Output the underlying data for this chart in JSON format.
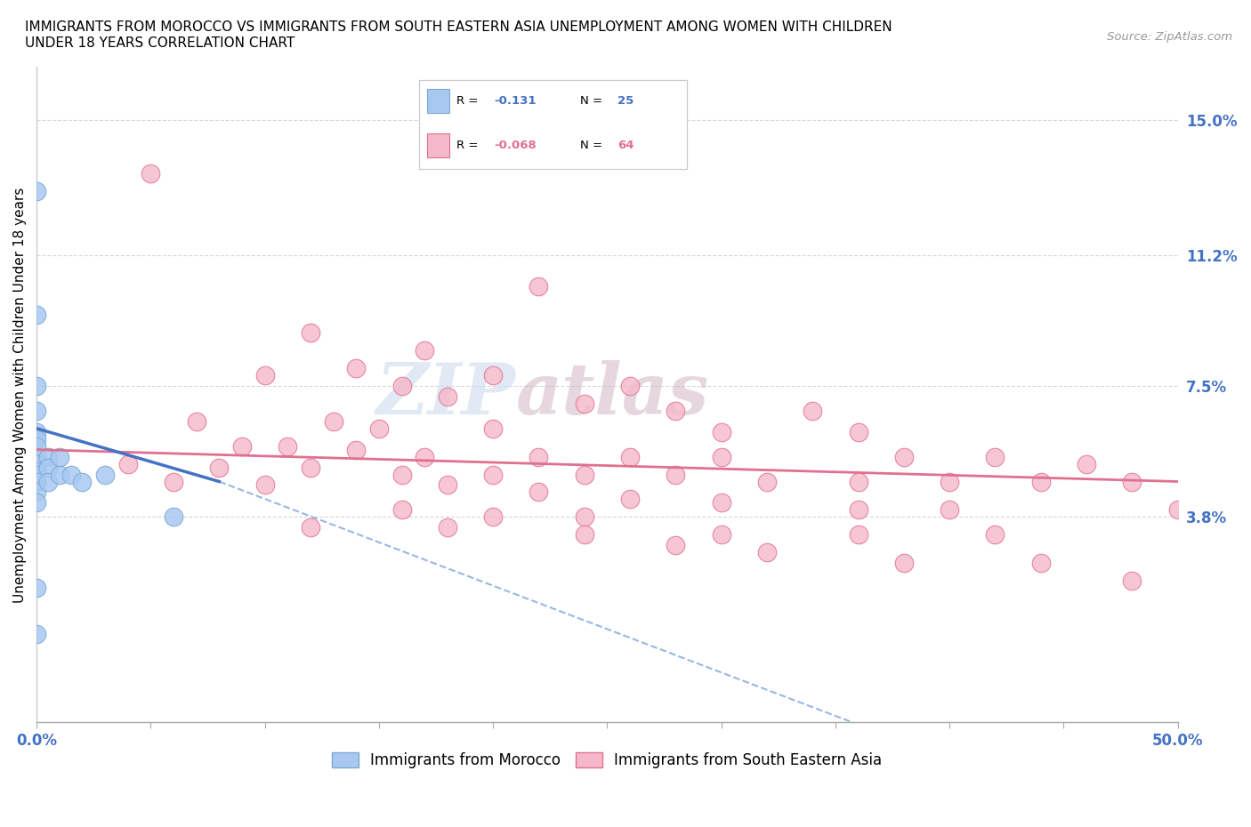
{
  "title": "IMMIGRANTS FROM MOROCCO VS IMMIGRANTS FROM SOUTH EASTERN ASIA UNEMPLOYMENT AMONG WOMEN WITH CHILDREN\nUNDER 18 YEARS CORRELATION CHART",
  "source": "Source: ZipAtlas.com",
  "ylabel": "Unemployment Among Women with Children Under 18 years",
  "xlim": [
    0.0,
    0.5
  ],
  "ylim": [
    -0.02,
    0.165
  ],
  "xticks": [
    0.0,
    0.05,
    0.1,
    0.15,
    0.2,
    0.25,
    0.3,
    0.35,
    0.4,
    0.45,
    0.5
  ],
  "ytick_positions": [
    0.0,
    0.038,
    0.075,
    0.112,
    0.15
  ],
  "ytick_labels": [
    "",
    "3.8%",
    "7.5%",
    "11.2%",
    "15.0%"
  ],
  "morocco_color": "#a8c8f0",
  "morocco_edge": "#7aaad4",
  "sea_color": "#f5b8c8",
  "sea_edge": "#e07090",
  "R_morocco": -0.131,
  "N_morocco": 25,
  "R_sea": -0.068,
  "N_sea": 64,
  "morocco_scatter": [
    [
      0.0,
      0.13
    ],
    [
      0.0,
      0.095
    ],
    [
      0.0,
      0.075
    ],
    [
      0.0,
      0.068
    ],
    [
      0.0,
      0.062
    ],
    [
      0.0,
      0.06
    ],
    [
      0.0,
      0.058
    ],
    [
      0.0,
      0.055
    ],
    [
      0.0,
      0.053
    ],
    [
      0.0,
      0.051
    ],
    [
      0.0,
      0.05
    ],
    [
      0.0,
      0.048
    ],
    [
      0.0,
      0.045
    ],
    [
      0.0,
      0.042
    ],
    [
      0.005,
      0.055
    ],
    [
      0.005,
      0.052
    ],
    [
      0.005,
      0.048
    ],
    [
      0.01,
      0.055
    ],
    [
      0.01,
      0.05
    ],
    [
      0.015,
      0.05
    ],
    [
      0.02,
      0.048
    ],
    [
      0.03,
      0.05
    ],
    [
      0.06,
      0.038
    ],
    [
      0.0,
      0.018
    ],
    [
      0.0,
      0.005
    ]
  ],
  "sea_scatter": [
    [
      0.05,
      0.135
    ],
    [
      0.22,
      0.103
    ],
    [
      0.12,
      0.09
    ],
    [
      0.17,
      0.085
    ],
    [
      0.14,
      0.08
    ],
    [
      0.2,
      0.078
    ],
    [
      0.1,
      0.078
    ],
    [
      0.16,
      0.075
    ],
    [
      0.26,
      0.075
    ],
    [
      0.18,
      0.072
    ],
    [
      0.24,
      0.07
    ],
    [
      0.28,
      0.068
    ],
    [
      0.34,
      0.068
    ],
    [
      0.07,
      0.065
    ],
    [
      0.13,
      0.065
    ],
    [
      0.15,
      0.063
    ],
    [
      0.2,
      0.063
    ],
    [
      0.3,
      0.062
    ],
    [
      0.36,
      0.062
    ],
    [
      0.09,
      0.058
    ],
    [
      0.11,
      0.058
    ],
    [
      0.14,
      0.057
    ],
    [
      0.17,
      0.055
    ],
    [
      0.22,
      0.055
    ],
    [
      0.26,
      0.055
    ],
    [
      0.3,
      0.055
    ],
    [
      0.38,
      0.055
    ],
    [
      0.42,
      0.055
    ],
    [
      0.46,
      0.053
    ],
    [
      0.04,
      0.053
    ],
    [
      0.08,
      0.052
    ],
    [
      0.12,
      0.052
    ],
    [
      0.16,
      0.05
    ],
    [
      0.2,
      0.05
    ],
    [
      0.24,
      0.05
    ],
    [
      0.28,
      0.05
    ],
    [
      0.32,
      0.048
    ],
    [
      0.36,
      0.048
    ],
    [
      0.4,
      0.048
    ],
    [
      0.44,
      0.048
    ],
    [
      0.48,
      0.048
    ],
    [
      0.06,
      0.048
    ],
    [
      0.1,
      0.047
    ],
    [
      0.18,
      0.047
    ],
    [
      0.22,
      0.045
    ],
    [
      0.26,
      0.043
    ],
    [
      0.3,
      0.042
    ],
    [
      0.36,
      0.04
    ],
    [
      0.4,
      0.04
    ],
    [
      0.16,
      0.04
    ],
    [
      0.2,
      0.038
    ],
    [
      0.24,
      0.038
    ],
    [
      0.12,
      0.035
    ],
    [
      0.18,
      0.035
    ],
    [
      0.24,
      0.033
    ],
    [
      0.3,
      0.033
    ],
    [
      0.36,
      0.033
    ],
    [
      0.42,
      0.033
    ],
    [
      0.28,
      0.03
    ],
    [
      0.32,
      0.028
    ],
    [
      0.38,
      0.025
    ],
    [
      0.44,
      0.025
    ],
    [
      0.5,
      0.04
    ],
    [
      0.48,
      0.02
    ]
  ],
  "watermark_zip": "ZIP",
  "watermark_atlas": "atlas",
  "background_color": "#ffffff",
  "grid_color": "#d8d8d8",
  "morocco_line_color": "#4472c4",
  "morocco_dash_color": "#99b8e0",
  "sea_line_color": "#e07090",
  "label_color": "#4472c4"
}
